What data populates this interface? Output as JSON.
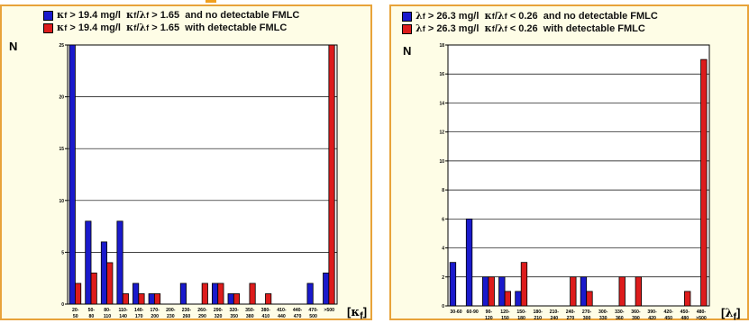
{
  "colors": {
    "panel_bg": "#fefde6",
    "panel_border": "#e8a33a",
    "series_blue": "#1a1acc",
    "series_red": "#dd1c1c"
  },
  "left": {
    "legend": [
      {
        "symbol": "κ",
        "subscript": "f",
        "text": " > 19.4 mg/l  ",
        "symbol2": "κ",
        "sub2a": "f",
        "slash": "/",
        "symbol3": "λ",
        "sub2b": "f",
        "text2": " > 1.65  and no detectable FMLC",
        "color": "#1a1acc"
      },
      {
        "symbol": "κ",
        "subscript": "f",
        "text": " > 19.4 mg/l  ",
        "symbol2": "κ",
        "sub2a": "f",
        "slash": "/",
        "symbol3": "λ",
        "sub2b": "f",
        "text2": " > 1.65  with detectable FMLC",
        "color": "#dd1c1c"
      }
    ],
    "ylabel": "N",
    "xlabel": {
      "open": "[",
      "symbol": "κ",
      "sub": "f",
      "close": "]"
    }
  },
  "right": {
    "legend": [
      {
        "symbol": "λ",
        "subscript": "f",
        "text": " > 26.3 mg/l  ",
        "symbol2": "κ",
        "sub2a": "f",
        "slash": "/",
        "symbol3": "λ",
        "sub2b": "f",
        "text2": " < 0.26  and no detectable FMLC",
        "color": "#1a1acc"
      },
      {
        "symbol": "λ",
        "subscript": "f",
        "text": " > 26.3 mg/l  ",
        "symbol2": "κ",
        "sub2a": "f",
        "slash": "/",
        "symbol3": "λ",
        "sub2b": "f",
        "text2": " < 0.26  with detectable FMLC",
        "color": "#dd1c1c"
      }
    ],
    "ylabel": "N",
    "xlabel": {
      "open": "[",
      "symbol": "λ",
      "sub": "f",
      "close": "]"
    }
  },
  "chart_data": [
    {
      "type": "bar",
      "categories": [
        "20-|50",
        "50-|80",
        "80-|110",
        "110-|140",
        "140-|170",
        "170-|200",
        "200-|230",
        "230-|260",
        "260-|290",
        "290-|320",
        "320-|350",
        "350-|380",
        "380-|410",
        "410-|440",
        "440-|470",
        "470-|500",
        ">500"
      ],
      "series": [
        {
          "values": [
            25,
            8,
            6,
            8,
            2,
            1,
            0,
            2,
            0,
            2,
            1,
            0,
            0,
            0,
            0,
            2,
            3
          ]
        },
        {
          "values": [
            2,
            3,
            4,
            1,
            1,
            1,
            0,
            0,
            2,
            2,
            1,
            2,
            1,
            0,
            0,
            0,
            25
          ]
        }
      ],
      "ylim": [
        0,
        25
      ],
      "yticks": [
        0,
        5,
        10,
        15,
        20,
        25
      ],
      "grid": true
    },
    {
      "type": "bar",
      "categories": [
        "30-60",
        "60-90",
        "90-|120",
        "120-|150",
        "150-|180",
        "180-|210",
        "210-|240",
        "240-|270",
        "270-|300",
        "300-|330",
        "330-|360",
        "360-|390",
        "390-|420",
        "420-|450",
        "450-|480",
        "480-|>500"
      ],
      "series": [
        {
          "values": [
            3,
            6,
            2,
            2,
            1,
            0,
            0,
            0,
            2,
            0,
            0,
            0,
            0,
            0,
            0,
            0
          ]
        },
        {
          "values": [
            0,
            0,
            2,
            1,
            3,
            0,
            0,
            2,
            1,
            0,
            2,
            2,
            0,
            0,
            1,
            17
          ]
        }
      ],
      "ylim": [
        0,
        18
      ],
      "yticks": [
        0,
        2,
        4,
        6,
        8,
        10,
        12,
        14,
        16,
        18
      ],
      "grid": true
    }
  ]
}
